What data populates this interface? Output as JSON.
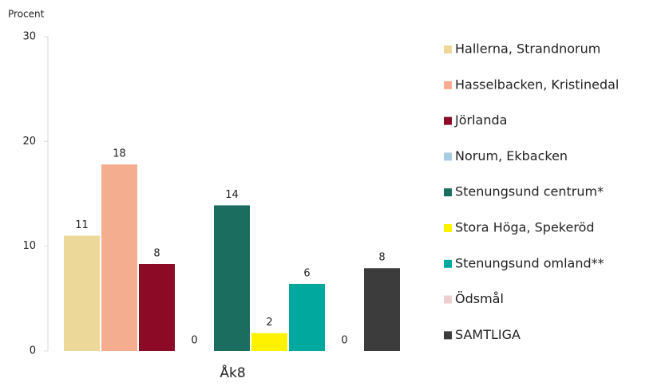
{
  "chart_data": {
    "type": "bar",
    "y_axis_label": "Procent",
    "categories": [
      "Åk8"
    ],
    "series": [
      {
        "name": "Hallerna, Strandnorum",
        "color": "#ecd898",
        "values": [
          11.0
        ],
        "value_labels": [
          "11"
        ]
      },
      {
        "name": "Hasselbacken, Kristinedal",
        "color": "#f4ad8f",
        "values": [
          17.8
        ],
        "value_labels": [
          "18"
        ]
      },
      {
        "name": "Jörlanda",
        "color": "#8c0a25",
        "values": [
          8.3
        ],
        "value_labels": [
          "8"
        ]
      },
      {
        "name": "Norum, Ekbacken",
        "color": "#a8cce0",
        "values": [
          0
        ],
        "value_labels": [
          "0"
        ]
      },
      {
        "name": "Stenungsund centrum*",
        "color": "#1b6e5f",
        "values": [
          13.9
        ],
        "value_labels": [
          "14"
        ]
      },
      {
        "name": "Stora Höga, Spekeröd",
        "color": "#fff200",
        "values": [
          1.7
        ],
        "value_labels": [
          "2"
        ]
      },
      {
        "name": "Stenungsund omland**",
        "color": "#00a89d",
        "values": [
          6.4
        ],
        "value_labels": [
          "6"
        ]
      },
      {
        "name": "Ödsmål",
        "color": "#eccfcf",
        "values": [
          0
        ],
        "value_labels": [
          "0"
        ]
      },
      {
        "name": "SAMTLIGA",
        "color": "#3c3c3c",
        "values": [
          7.9
        ],
        "value_labels": [
          "8"
        ]
      }
    ],
    "ylim": [
      0,
      30
    ],
    "yticks": [
      0,
      10,
      20,
      30
    ],
    "grid": false,
    "legend": "right"
  }
}
